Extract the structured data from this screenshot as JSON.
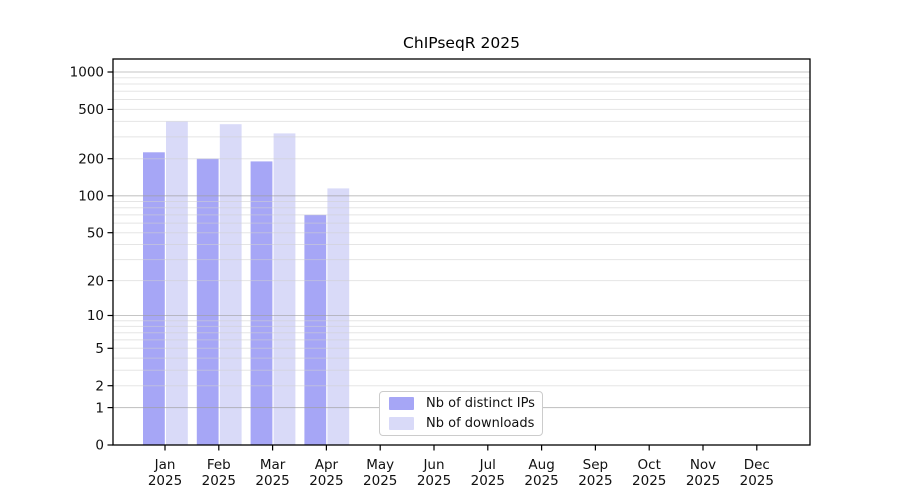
{
  "chart_data": {
    "type": "bar",
    "title": "ChIPseqR 2025",
    "year_label": "2025",
    "categories": [
      "Jan",
      "Feb",
      "Mar",
      "Apr",
      "May",
      "Jun",
      "Jul",
      "Aug",
      "Sep",
      "Oct",
      "Nov",
      "Dec"
    ],
    "series": [
      {
        "name": "Nb of distinct IPs",
        "color": "#a6a6f6",
        "values": [
          225,
          200,
          190,
          70,
          0,
          0,
          0,
          0,
          0,
          0,
          0,
          0
        ]
      },
      {
        "name": "Nb of downloads",
        "color": "#d9daf8",
        "values": [
          400,
          380,
          320,
          115,
          0,
          0,
          0,
          0,
          0,
          0,
          0,
          0
        ]
      }
    ],
    "y_ticks": [
      0,
      1,
      2,
      5,
      10,
      20,
      50,
      100,
      200,
      500,
      1000
    ],
    "y_scale": "log10(value+1)",
    "ylim": [
      0,
      1050
    ],
    "grid": {
      "on": true,
      "minor_color": "#d0d0d0",
      "major_color": "#9e9e9e"
    },
    "legend": {
      "position": "lower-center",
      "border_color": "#cccccc",
      "background": "#ffffff"
    },
    "axis_color": "#000000",
    "text_color": "#111111"
  }
}
